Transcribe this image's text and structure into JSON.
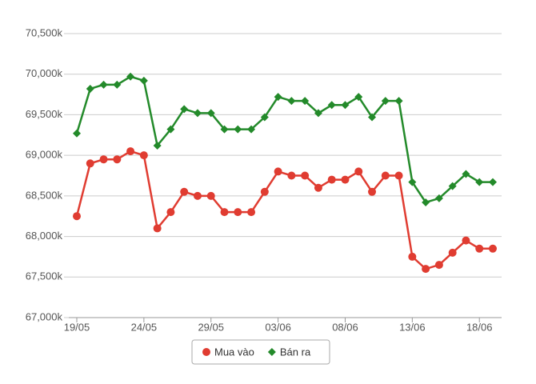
{
  "chart_data": {
    "type": "line",
    "categories": [
      "19/05",
      null,
      null,
      null,
      null,
      "24/05",
      null,
      null,
      null,
      null,
      "29/05",
      null,
      null,
      null,
      null,
      "03/06",
      null,
      null,
      null,
      null,
      "08/06",
      null,
      null,
      null,
      null,
      "13/06",
      null,
      null,
      null,
      null,
      "18/06",
      null
    ],
    "series": [
      {
        "name": "Mua vào",
        "color": "#e03c31",
        "marker": "circle",
        "values": [
          68250,
          68900,
          68950,
          68950,
          69050,
          69000,
          68100,
          68300,
          68550,
          68500,
          68500,
          68300,
          68300,
          68300,
          68550,
          68800,
          68750,
          68750,
          68600,
          68700,
          68700,
          68800,
          68550,
          68750,
          68750,
          67750,
          67600,
          67650,
          67800,
          67950,
          67850,
          67850
        ]
      },
      {
        "name": "Bán ra",
        "color": "#238a2a",
        "marker": "diamond",
        "values": [
          69270,
          69820,
          69870,
          69870,
          69970,
          69920,
          69120,
          69320,
          69570,
          69520,
          69520,
          69320,
          69320,
          69320,
          69470,
          69720,
          69670,
          69670,
          69520,
          69620,
          69620,
          69720,
          69470,
          69670,
          69670,
          68670,
          68420,
          68470,
          68620,
          68770,
          68670,
          68670
        ]
      }
    ],
    "ylim": [
      67000,
      70500
    ],
    "yticks": [
      {
        "value": 67000,
        "label": "67,000k"
      },
      {
        "value": 67500,
        "label": "67,500k"
      },
      {
        "value": 68000,
        "label": "68,000k"
      },
      {
        "value": 68500,
        "label": "68,500k"
      },
      {
        "value": 69000,
        "label": "69,000k"
      },
      {
        "value": 69500,
        "label": "69,500k"
      },
      {
        "value": 70000,
        "label": "70,000k"
      },
      {
        "value": 70500,
        "label": "70,500k"
      }
    ],
    "grid": true,
    "legend": "bottom"
  }
}
